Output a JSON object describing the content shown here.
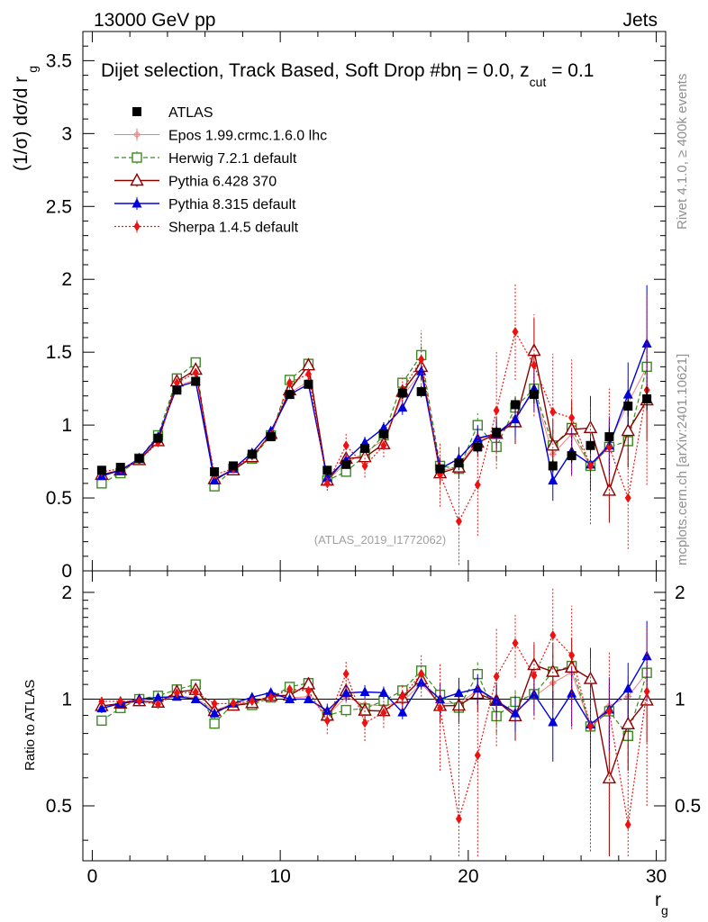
{
  "header": {
    "left": "13000 GeV pp",
    "right": "Jets"
  },
  "chart_data": {
    "type": "scatter",
    "title": "Dijet selection, Track Based, Soft Drop #b",
    "title_suffix": "η = 0.0, z",
    "title_sub": "cut",
    "title_end": " = 0.1",
    "ylabel": "(1/σ) dσ/d r",
    "ylabel_sub": "g",
    "xlabel": "r",
    "xlabel_sub": "g",
    "ratio_ylabel": "Ratio to ATLAS",
    "watermark": "(ATLAS_2019_I1772062)",
    "side_top": "Rivet 4.1.0, ≥ 400k events",
    "side_bottom": "mcplots.cern.ch [arXiv:2401.10621]",
    "xlim": [
      -0.5,
      30.5
    ],
    "ylim": [
      0,
      3.7
    ],
    "ratio_ylim": [
      0.35,
      2.3
    ],
    "xticks": [
      0,
      10,
      20,
      30
    ],
    "yticks": [
      0,
      0.5,
      1,
      1.5,
      2,
      2.5,
      3,
      3.5
    ],
    "ytick_labels": [
      "0",
      "0.5",
      "1",
      "1.5",
      "2",
      "2.5",
      "3",
      "3.5"
    ],
    "ratio_yticks": [
      0.5,
      1,
      2
    ],
    "ratio_ytick_labels": [
      "0.5",
      "1",
      "2"
    ],
    "x": [
      0.5,
      1.5,
      2.5,
      3.5,
      4.5,
      5.5,
      6.5,
      7.5,
      8.5,
      9.5,
      10.5,
      11.5,
      12.5,
      13.5,
      14.5,
      15.5,
      16.5,
      17.5,
      18.5,
      19.5,
      20.5,
      21.5,
      22.5,
      23.5,
      24.5,
      25.5,
      26.5,
      27.5,
      28.5,
      29.5
    ],
    "data": {
      "name": "ATLAS",
      "values": [
        0.69,
        0.71,
        0.77,
        0.91,
        1.24,
        1.3,
        0.68,
        0.72,
        0.8,
        0.92,
        1.21,
        1.28,
        0.69,
        0.73,
        0.84,
        0.94,
        1.22,
        1.23,
        0.7,
        0.74,
        0.85,
        0.95,
        1.14,
        1.21,
        0.72,
        0.79,
        0.86,
        0.92,
        1.13,
        1.18
      ],
      "errors": [
        0.02,
        0.02,
        0.02,
        0.02,
        0.03,
        0.03,
        0.02,
        0.02,
        0.02,
        0.02,
        0.03,
        0.03,
        0.03,
        0.03,
        0.03,
        0.03,
        0.04,
        0.04,
        0.03,
        0.03,
        0.04,
        0.04,
        0.05,
        0.06,
        0.04,
        0.05,
        0.05,
        0.06,
        0.07,
        0.08
      ]
    },
    "series": [
      {
        "name": "Epos 1.99.crmc.1.6.0 lhc",
        "color": "#f08080",
        "values": [
          0.66,
          0.69,
          0.77,
          0.9,
          1.27,
          1.31,
          0.63,
          0.7,
          0.78,
          0.94,
          1.22,
          1.3,
          0.62,
          0.74,
          0.81,
          0.9,
          1.2,
          1.36,
          0.68,
          0.72,
          0.9,
          0.94,
          1.05,
          1.23,
          0.8,
          0.94,
          0.72,
          0.88,
          1.15,
          1.4
        ],
        "errors": [
          0.02,
          0.02,
          0.02,
          0.02,
          0.03,
          0.03,
          0.02,
          0.02,
          0.02,
          0.02,
          0.03,
          0.03,
          0.03,
          0.03,
          0.03,
          0.03,
          0.04,
          0.05,
          0.05,
          0.06,
          0.07,
          0.08,
          0.09,
          0.1,
          0.1,
          0.12,
          0.12,
          0.14,
          0.16,
          0.18
        ]
      },
      {
        "name": "Herwig 7.2.1 default",
        "color": "#3a8a1f",
        "values": [
          0.6,
          0.67,
          0.77,
          0.93,
          1.32,
          1.43,
          0.58,
          0.7,
          0.77,
          0.93,
          1.31,
          1.42,
          0.62,
          0.68,
          0.79,
          0.93,
          1.29,
          1.48,
          0.72,
          0.7,
          1.0,
          0.85,
          1.12,
          1.25,
          0.86,
          0.98,
          0.72,
          0.85,
          0.89,
          1.4
        ],
        "errors": [
          0.02,
          0.02,
          0.02,
          0.02,
          0.03,
          0.03,
          0.02,
          0.02,
          0.02,
          0.02,
          0.03,
          0.03,
          0.03,
          0.03,
          0.03,
          0.04,
          0.05,
          0.06,
          0.06,
          0.07,
          0.08,
          0.09,
          0.1,
          0.12,
          0.12,
          0.14,
          0.15,
          0.16,
          0.18,
          0.2
        ]
      },
      {
        "name": "Pythia 6.428 370",
        "color": "#8b0000",
        "values": [
          0.66,
          0.69,
          0.76,
          0.89,
          1.3,
          1.38,
          0.63,
          0.69,
          0.78,
          0.94,
          1.24,
          1.41,
          0.62,
          0.77,
          0.78,
          0.87,
          1.23,
          1.4,
          0.67,
          0.71,
          0.88,
          0.94,
          1.02,
          1.51,
          0.86,
          0.97,
          0.98,
          0.55,
          0.96,
          1.17
        ],
        "errors": [
          0.02,
          0.02,
          0.02,
          0.02,
          0.03,
          0.03,
          0.02,
          0.02,
          0.02,
          0.02,
          0.03,
          0.03,
          0.03,
          0.04,
          0.04,
          0.04,
          0.05,
          0.07,
          0.07,
          0.08,
          0.1,
          0.12,
          0.15,
          0.22,
          0.18,
          0.2,
          0.22,
          0.22,
          0.25,
          0.28
        ]
      },
      {
        "name": "Pythia 8.315 default",
        "color": "#0000dd",
        "values": [
          0.65,
          0.69,
          0.77,
          0.92,
          1.26,
          1.3,
          0.62,
          0.7,
          0.81,
          0.96,
          1.21,
          1.28,
          0.64,
          0.76,
          0.88,
          0.98,
          1.12,
          1.37,
          0.7,
          0.77,
          0.91,
          0.94,
          1.04,
          1.25,
          0.62,
          0.82,
          0.73,
          0.86,
          1.21,
          1.56
        ],
        "errors": [
          0.02,
          0.02,
          0.02,
          0.02,
          0.03,
          0.03,
          0.02,
          0.02,
          0.02,
          0.02,
          0.03,
          0.03,
          0.03,
          0.04,
          0.04,
          0.04,
          0.05,
          0.06,
          0.07,
          0.08,
          0.09,
          0.1,
          0.12,
          0.16,
          0.14,
          0.16,
          0.18,
          0.2,
          0.22,
          0.4
        ]
      },
      {
        "name": "Sherpa 1.4.5 default",
        "color": "#ee1111",
        "values": [
          0.68,
          0.7,
          0.76,
          0.88,
          1.29,
          1.36,
          0.66,
          0.7,
          0.79,
          0.93,
          1.29,
          1.35,
          0.6,
          0.86,
          0.72,
          0.86,
          1.24,
          1.45,
          0.66,
          0.34,
          0.59,
          1.1,
          1.64,
          1.41,
          1.09,
          1.05,
          0.72,
          0.85,
          0.5,
          1.24
        ],
        "errors": [
          0.02,
          0.02,
          0.02,
          0.02,
          0.03,
          0.03,
          0.02,
          0.02,
          0.02,
          0.02,
          0.04,
          0.04,
          0.05,
          0.08,
          0.08,
          0.08,
          0.1,
          0.2,
          0.22,
          0.3,
          0.35,
          0.4,
          0.33,
          0.35,
          0.4,
          0.4,
          0.4,
          0.4,
          0.35,
          0.65
        ]
      }
    ]
  }
}
